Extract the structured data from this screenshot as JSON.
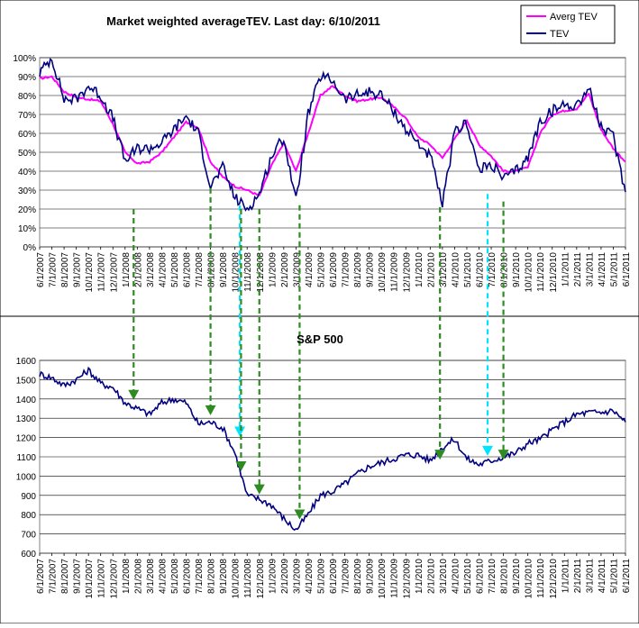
{
  "chart_data": [
    {
      "type": "line",
      "title": "Market weighted averageTEV. Last day: 6/10/2011",
      "ylim": [
        0,
        100
      ],
      "yticks": [
        "0%",
        "10%",
        "20%",
        "30%",
        "40%",
        "50%",
        "60%",
        "70%",
        "80%",
        "90%",
        "100%"
      ],
      "xtick_labels": [
        "6/1/2007",
        "7/1/2007",
        "8/1/2007",
        "9/1/2007",
        "10/1/2007",
        "11/1/2007",
        "12/1/2007",
        "1/1/2008",
        "2/1/2008",
        "3/1/2008",
        "4/1/2008",
        "5/1/2008",
        "6/1/2008",
        "7/1/2008",
        "8/1/2008",
        "9/1/2008",
        "10/1/2008",
        "11/1/2008",
        "12/1/2008",
        "1/1/2009",
        "2/1/2009",
        "3/1/2009",
        "4/1/2009",
        "5/1/2009",
        "6/1/2009",
        "7/1/2009",
        "8/1/2009",
        "9/1/2009",
        "10/1/2009",
        "11/1/2009",
        "12/1/2009",
        "1/1/2010",
        "2/1/2010",
        "3/1/2010",
        "4/1/2010",
        "5/1/2010",
        "6/1/2010",
        "7/1/2010",
        "8/1/2010",
        "9/1/2010",
        "10/1/2010",
        "11/1/2010",
        "12/1/2010",
        "1/1/2011",
        "2/1/2011",
        "3/1/2011",
        "4/1/2011",
        "5/1/2011",
        "6/1/2011"
      ],
      "legend_position": "top-right",
      "grid": true,
      "series": [
        {
          "name": "Averg TEV",
          "color": "#ff00ff",
          "values": [
            89,
            90,
            82,
            79,
            78,
            77,
            65,
            50,
            44,
            45,
            50,
            58,
            66,
            63,
            45,
            37,
            32,
            30,
            27,
            43,
            55,
            40,
            60,
            80,
            85,
            80,
            77,
            78,
            79,
            74,
            68,
            58,
            54,
            47,
            57,
            67,
            54,
            48,
            40,
            40,
            42,
            60,
            70,
            72,
            73,
            81,
            62,
            52,
            45
          ]
        },
        {
          "name": "TEV",
          "color": "#000080",
          "values": [
            92,
            100,
            78,
            78,
            85,
            80,
            68,
            45,
            52,
            52,
            55,
            62,
            69,
            60,
            32,
            42,
            26,
            20,
            28,
            48,
            58,
            24,
            70,
            90,
            88,
            78,
            80,
            82,
            80,
            72,
            62,
            55,
            48,
            22,
            60,
            66,
            40,
            44,
            36,
            40,
            47,
            66,
            72,
            75,
            75,
            84,
            63,
            58,
            29
          ]
        }
      ]
    },
    {
      "type": "line",
      "title": "S&P 500",
      "ylim": [
        600,
        1600
      ],
      "yticks": [
        "600",
        "700",
        "800",
        "900",
        "1000",
        "1100",
        "1200",
        "1300",
        "1400",
        "1500",
        "1600"
      ],
      "xtick_labels": [
        "6/1/2007",
        "7/1/2007",
        "8/1/2007",
        "9/1/2007",
        "10/1/2007",
        "11/1/2007",
        "12/1/2007",
        "1/1/2008",
        "2/1/2008",
        "3/1/2008",
        "4/1/2008",
        "5/1/2008",
        "6/1/2008",
        "7/1/2008",
        "8/1/2008",
        "9/1/2008",
        "10/1/2008",
        "11/1/2008",
        "12/1/2008",
        "1/1/2009",
        "2/1/2009",
        "3/1/2009",
        "4/1/2009",
        "5/1/2009",
        "6/1/2009",
        "7/1/2009",
        "8/1/2009",
        "9/1/2009",
        "10/1/2009",
        "11/1/2009",
        "12/1/2009",
        "1/1/2010",
        "2/1/2010",
        "3/1/2010",
        "4/1/2010",
        "5/1/2010",
        "6/1/2010",
        "7/1/2010",
        "8/1/2010",
        "9/1/2010",
        "10/1/2010",
        "11/1/2010",
        "12/1/2010",
        "1/1/2011",
        "2/1/2011",
        "3/1/2011",
        "4/1/2011",
        "5/1/2011",
        "6/1/2011"
      ],
      "grid": true,
      "series": [
        {
          "color": "#000080",
          "values": [
            1530,
            1510,
            1470,
            1500,
            1550,
            1480,
            1460,
            1380,
            1350,
            1320,
            1380,
            1400,
            1380,
            1270,
            1280,
            1250,
            1120,
            900,
            880,
            850,
            780,
            720,
            800,
            900,
            920,
            960,
            1010,
            1050,
            1070,
            1090,
            1110,
            1110,
            1080,
            1150,
            1190,
            1090,
            1060,
            1080,
            1100,
            1120,
            1170,
            1190,
            1240,
            1280,
            1320,
            1330,
            1330,
            1340,
            1280
          ]
        }
      ]
    }
  ],
  "markers": [
    {
      "style": "green",
      "top_pct": 20,
      "sp500_value": 1400,
      "date_index": 7.7
    },
    {
      "style": "green",
      "top_pct": 31,
      "sp500_value": 1320,
      "date_index": 14.0
    },
    {
      "style": "cyan",
      "top_pct": 22,
      "sp500_value": 1210,
      "date_index": 16.4
    },
    {
      "style": "green",
      "top_pct": 20,
      "sp500_value": 1030,
      "date_index": 16.5
    },
    {
      "style": "green",
      "top_pct": 20,
      "sp500_value": 910,
      "date_index": 18.0
    },
    {
      "style": "green",
      "top_pct": 22,
      "sp500_value": 780,
      "date_index": 21.3
    },
    {
      "style": "green",
      "top_pct": 21,
      "sp500_value": 1090,
      "date_index": 32.8
    },
    {
      "style": "cyan",
      "top_pct": 28,
      "sp500_value": 1110,
      "date_index": 36.7
    },
    {
      "style": "green",
      "top_pct": 24,
      "sp500_value": 1090,
      "date_index": 38.0
    }
  ]
}
